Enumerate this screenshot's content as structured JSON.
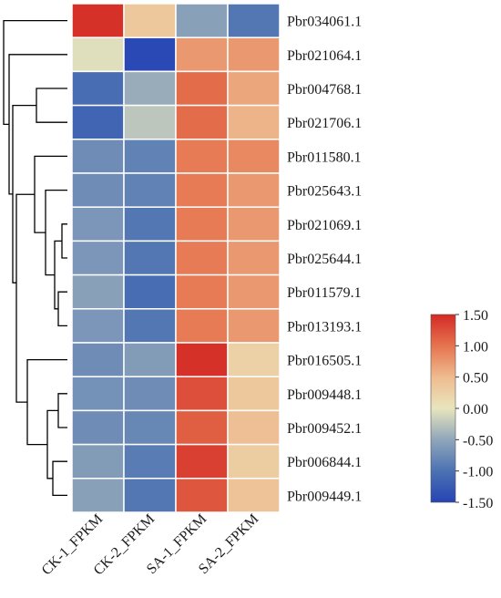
{
  "chart_data": {
    "type": "heatmap",
    "columns": [
      "CK-1_FPKM",
      "CK-2_FPKM",
      "SA-1_FPKM",
      "SA-2_FPKM"
    ],
    "rows": [
      "Pbr034061.1",
      "Pbr021064.1",
      "Pbr004768.1",
      "Pbr021706.1",
      "Pbr011580.1",
      "Pbr025643.1",
      "Pbr021069.1",
      "Pbr025644.1",
      "Pbr011579.1",
      "Pbr013193.1",
      "Pbr016505.1",
      "Pbr009448.1",
      "Pbr009452.1",
      "Pbr006844.1",
      "Pbr009449.1"
    ],
    "values": [
      [
        1.45,
        0.35,
        -0.55,
        -0.95
      ],
      [
        -0.05,
        -1.45,
        0.75,
        0.75
      ],
      [
        -1.05,
        -0.45,
        1.05,
        0.65
      ],
      [
        -1.15,
        -0.25,
        1.05,
        0.55
      ],
      [
        -0.75,
        -0.85,
        0.95,
        0.85
      ],
      [
        -0.75,
        -0.85,
        0.95,
        0.75
      ],
      [
        -0.65,
        -0.95,
        0.95,
        0.75
      ],
      [
        -0.65,
        -0.95,
        0.95,
        0.75
      ],
      [
        -0.55,
        -1.05,
        0.95,
        0.75
      ],
      [
        -0.65,
        -0.95,
        0.95,
        0.75
      ],
      [
        -0.75,
        -0.6,
        1.45,
        0.25
      ],
      [
        -0.7,
        -0.75,
        1.25,
        0.35
      ],
      [
        -0.75,
        -0.8,
        1.15,
        0.45
      ],
      [
        -0.6,
        -0.9,
        1.35,
        0.3
      ],
      [
        -0.55,
        -0.95,
        1.2,
        0.4
      ]
    ],
    "colorbar": {
      "ticks": [
        "1.50",
        "1.00",
        "0.50",
        "0.00",
        "-0.50",
        "-1.00",
        "-1.50"
      ],
      "min": -1.5,
      "max": 1.5,
      "colors": [
        "#2644b4",
        "#4c72b2",
        "#8fa6ba",
        "#e8e5bd",
        "#efbb8f",
        "#e5744f",
        "#d42a25"
      ]
    },
    "dendrogram": "row clustering tree on left",
    "title": "",
    "xlabel": "",
    "ylabel": ""
  }
}
